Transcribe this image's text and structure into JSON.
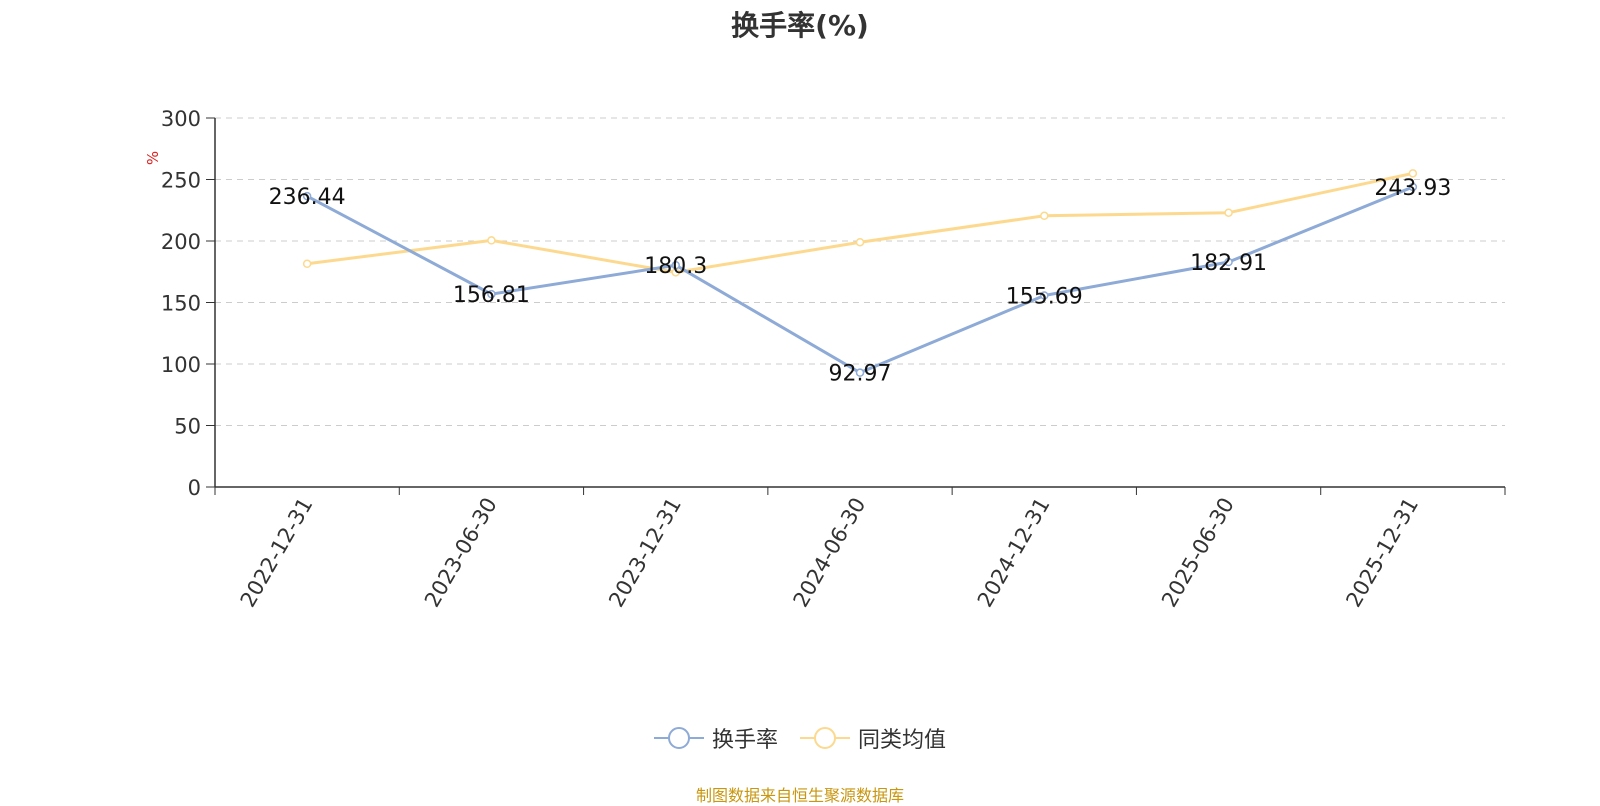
{
  "chart_data": {
    "type": "line",
    "title": "换手率(%)",
    "ylabel": "%",
    "xlabel": "",
    "ylim": [
      0,
      300
    ],
    "yticks": [
      0,
      50,
      100,
      150,
      200,
      250,
      300
    ],
    "grid": true,
    "legend_position": "bottom-center",
    "categories": [
      "2022-12-31",
      "2023-06-30",
      "2023-12-31",
      "2024-06-30",
      "2024-12-31",
      "2025-06-30",
      "2025-12-31"
    ],
    "series": [
      {
        "name": "换手率",
        "color": "#8eaad6",
        "values": [
          236.44,
          156.81,
          180.3,
          92.97,
          155.69,
          182.91,
          243.93
        ],
        "show_labels": true
      },
      {
        "name": "同类均值",
        "color": "#fcd98e",
        "values": [
          181.5,
          200.5,
          174.5,
          199,
          220.5,
          223,
          255
        ],
        "show_labels": false
      }
    ]
  },
  "source_text": "制图数据来自恒生聚源数据库"
}
